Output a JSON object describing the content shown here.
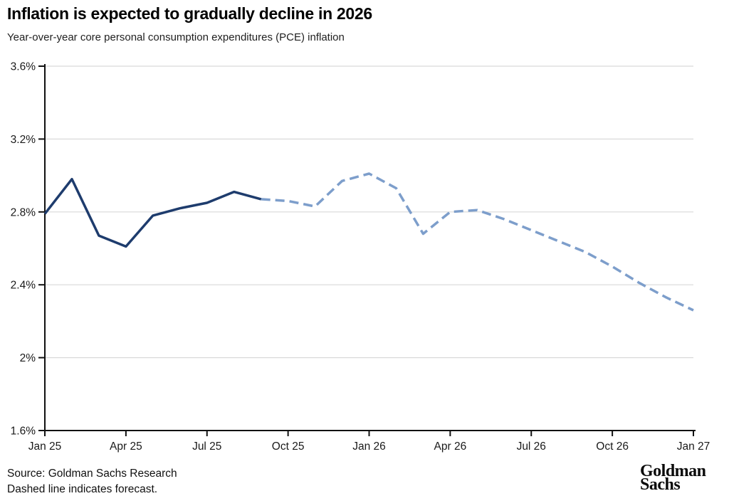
{
  "header": {
    "title": "Inflation is expected to gradually decline in 2026",
    "subtitle": "Year-over-year core personal consumption expenditures (PCE) inflation"
  },
  "footer": {
    "source": "Source: Goldman Sachs Research",
    "note": "Dashed line indicates forecast.",
    "logo_line1": "Goldman",
    "logo_line2": "Sachs"
  },
  "chart_data": {
    "type": "line",
    "title": "Inflation is expected to gradually decline in 2026",
    "subtitle": "Year-over-year core personal consumption expenditures (PCE) inflation",
    "ylabel": "",
    "xlabel": "",
    "ylim": [
      1.6,
      3.6
    ],
    "y_ticks": [
      3.6,
      3.2,
      2.8,
      2.4,
      2.0,
      1.6
    ],
    "y_tick_labels": [
      "3.6%",
      "3.2%",
      "2.8%",
      "2.4%",
      "2%",
      "1.6%"
    ],
    "months": [
      "Jan 25",
      "Feb 25",
      "Mar 25",
      "Apr 25",
      "May 25",
      "Jun 25",
      "Jul 25",
      "Aug 25",
      "Sep 25",
      "Oct 25",
      "Nov 25",
      "Dec 25",
      "Jan 26",
      "Feb 26",
      "Mar 26",
      "Apr 26",
      "May 26",
      "Jun 26",
      "Jul 26",
      "Aug 26",
      "Sep 26",
      "Oct 26",
      "Nov 26",
      "Dec 26",
      "Jan 27"
    ],
    "x_tick_labels": [
      "Jan 25",
      "Apr 25",
      "Jul 25",
      "Oct 25",
      "Jan 26",
      "Apr 26",
      "Jul 26",
      "Oct 26",
      "Jan 27"
    ],
    "grid": "horizontal",
    "legend_position": "none",
    "colors": {
      "actual_line": "#1e3c6d",
      "forecast_line": "#7d9ecb",
      "gridline": "#d9d9d9",
      "axis": "#111111",
      "tick_label": "#1a1a1a"
    },
    "series": [
      {
        "name": "Actual core PCE inflation",
        "style": "solid",
        "color": "#1e3c6d",
        "x": [
          "Jan 25",
          "Feb 25",
          "Mar 25",
          "Apr 25",
          "May 25",
          "Jun 25",
          "Jul 25",
          "Aug 25",
          "Sep 25"
        ],
        "values": [
          2.79,
          2.98,
          2.67,
          2.61,
          2.78,
          2.82,
          2.85,
          2.91,
          2.87
        ]
      },
      {
        "name": "Goldman Sachs forecast",
        "style": "dashed",
        "color": "#7d9ecb",
        "x": [
          "Sep 25",
          "Oct 25",
          "Nov 25",
          "Dec 25",
          "Jan 26",
          "Feb 26",
          "Mar 26",
          "Apr 26",
          "May 26",
          "Jun 26",
          "Jul 26",
          "Aug 26",
          "Sep 26",
          "Oct 26",
          "Nov 26",
          "Dec 26",
          "Jan 27"
        ],
        "values": [
          2.87,
          2.86,
          2.83,
          2.97,
          3.01,
          2.93,
          2.68,
          2.8,
          2.81,
          2.76,
          2.7,
          2.64,
          2.58,
          2.5,
          2.41,
          2.33,
          2.26
        ]
      }
    ]
  }
}
